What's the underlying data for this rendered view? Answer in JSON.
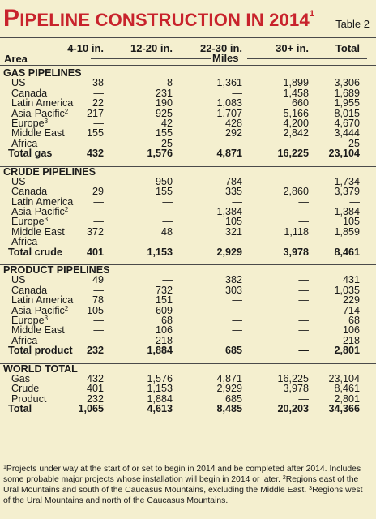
{
  "title": {
    "first": "P",
    "rest": "IPELINE CONSTRUCTION IN 2014",
    "marker": "1"
  },
  "table_label": "Table 2",
  "header": {
    "area": "Area",
    "columns": [
      "4-10 in.",
      "12-20 in.",
      "22-30 in.",
      "30+ in.",
      "Total"
    ],
    "unit": "Miles"
  },
  "rows": [
    {
      "type": "section",
      "label": "GAS PIPELINES"
    },
    {
      "type": "data",
      "label": "US",
      "vals": [
        "38",
        "8",
        "1,361",
        "1,899",
        "3,306"
      ]
    },
    {
      "type": "data",
      "label": "Canada",
      "vals": [
        "—",
        "231",
        "—",
        "1,458",
        "1,689"
      ]
    },
    {
      "type": "data",
      "label": "Latin America",
      "vals": [
        "22",
        "190",
        "1,083",
        "660",
        "1,955"
      ]
    },
    {
      "type": "data",
      "label": "Asia-Pacific",
      "sup": "2",
      "vals": [
        "217",
        "925",
        "1,707",
        "5,166",
        "8,015"
      ]
    },
    {
      "type": "data",
      "label": "Europe",
      "sup": "3",
      "vals": [
        "—",
        "42",
        "428",
        "4,200",
        "4,670"
      ]
    },
    {
      "type": "data",
      "label": "Middle East",
      "vals": [
        "155",
        "155",
        "292",
        "2,842",
        "3,444"
      ]
    },
    {
      "type": "data",
      "label": "Africa",
      "vals": [
        "—",
        "25",
        "—",
        "—",
        "25"
      ]
    },
    {
      "type": "total",
      "label": "Total gas",
      "vals": [
        "432",
        "1,576",
        "4,871",
        "16,225",
        "23,104"
      ]
    },
    {
      "type": "gap"
    },
    {
      "type": "section",
      "label": "CRUDE PIPELINES"
    },
    {
      "type": "data",
      "label": "US",
      "vals": [
        "—",
        "950",
        "784",
        "—",
        "1,734"
      ]
    },
    {
      "type": "data",
      "label": "Canada",
      "vals": [
        "29",
        "155",
        "335",
        "2,860",
        "3,379"
      ]
    },
    {
      "type": "data",
      "label": "Latin America",
      "vals": [
        "—",
        "—",
        "—",
        "—",
        "—"
      ]
    },
    {
      "type": "data",
      "label": "Asia-Pacific",
      "sup": "2",
      "vals": [
        "—",
        "—",
        "1,384",
        "—",
        "1,384"
      ]
    },
    {
      "type": "data",
      "label": "Europe",
      "sup": "3",
      "vals": [
        "—",
        "—",
        "105",
        "—",
        "105"
      ]
    },
    {
      "type": "data",
      "label": "Middle East",
      "vals": [
        "372",
        "48",
        "321",
        "1,118",
        "1,859"
      ]
    },
    {
      "type": "data",
      "label": "Africa",
      "vals": [
        "—",
        "—",
        "—",
        "—",
        "—"
      ]
    },
    {
      "type": "total",
      "label": "Total crude",
      "vals": [
        "401",
        "1,153",
        "2,929",
        "3,978",
        "8,461"
      ]
    },
    {
      "type": "gap"
    },
    {
      "type": "section",
      "label": "PRODUCT PIPELINES"
    },
    {
      "type": "data",
      "label": "US",
      "vals": [
        "49",
        "—",
        "382",
        "—",
        "431"
      ]
    },
    {
      "type": "data",
      "label": "Canada",
      "vals": [
        "—",
        "732",
        "303",
        "—",
        "1,035"
      ]
    },
    {
      "type": "data",
      "label": "Latin America",
      "vals": [
        "78",
        "151",
        "—",
        "—",
        "229"
      ]
    },
    {
      "type": "data",
      "label": "Asia-Pacific",
      "sup": "2",
      "vals": [
        "105",
        "609",
        "—",
        "—",
        "714"
      ]
    },
    {
      "type": "data",
      "label": "Europe",
      "sup": "3",
      "vals": [
        "—",
        "68",
        "—",
        "—",
        "68"
      ]
    },
    {
      "type": "data",
      "label": "Middle East",
      "vals": [
        "—",
        "106",
        "—",
        "—",
        "106"
      ]
    },
    {
      "type": "data",
      "label": "Africa",
      "vals": [
        "—",
        "218",
        "—",
        "—",
        "218"
      ]
    },
    {
      "type": "total",
      "label": "Total product",
      "vals": [
        "232",
        "1,884",
        "685",
        "—",
        "2,801"
      ]
    },
    {
      "type": "gap"
    },
    {
      "type": "section",
      "label": "WORLD TOTAL"
    },
    {
      "type": "data",
      "label": "Gas",
      "vals": [
        "432",
        "1,576",
        "4,871",
        "16,225",
        "23,104"
      ]
    },
    {
      "type": "data",
      "label": "Crude",
      "vals": [
        "401",
        "1,153",
        "2,929",
        "3,978",
        "8,461"
      ]
    },
    {
      "type": "data",
      "label": "Product",
      "vals": [
        "232",
        "1,884",
        "685",
        "—",
        "2,801"
      ]
    },
    {
      "type": "total",
      "label": "Total",
      "vals": [
        "1,065",
        "4,613",
        "8,485",
        "20,203",
        "34,366"
      ]
    }
  ],
  "footnote": [
    {
      "sup": "1",
      "text": "Projects under way at the start of or set to begin in 2014 and be completed after 2014. Includes some probable major projects whose installation will begin in 2014 or later. "
    },
    {
      "sup": "2",
      "text": "Regions east of the Ural Mountains and south of the Caucasus Mountains, excluding the Middle East. "
    },
    {
      "sup": "3",
      "text": "Regions west of the Ural Mountains and north of the Caucasus Mountains."
    }
  ]
}
